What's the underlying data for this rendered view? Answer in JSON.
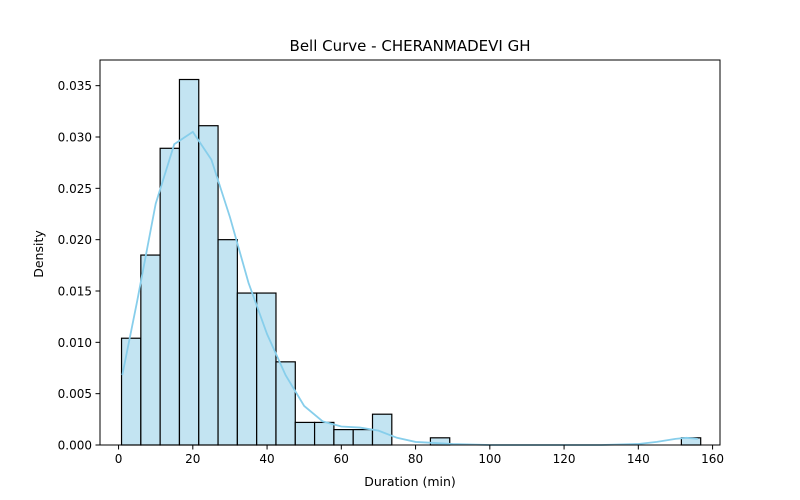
{
  "chart_data": {
    "type": "bar",
    "title": "Bell Curve - CHERANMADEVI GH",
    "xlabel": "Duration (min)",
    "ylabel": "Density",
    "xlim": [
      -5,
      162
    ],
    "ylim": [
      0,
      0.0375
    ],
    "xticks": [
      0,
      20,
      40,
      60,
      80,
      100,
      120,
      140,
      160
    ],
    "yticks": [
      0.0,
      0.005,
      0.01,
      0.015,
      0.02,
      0.025,
      0.03,
      0.035
    ],
    "xtick_labels": [
      "0",
      "20",
      "40",
      "60",
      "80",
      "100",
      "120",
      "140",
      "160"
    ],
    "ytick_labels": [
      "0.000",
      "0.005",
      "0.010",
      "0.015",
      "0.020",
      "0.025",
      "0.030",
      "0.035"
    ],
    "grid": false,
    "bar_fill": "#c3e4f2",
    "bar_edge": "#000000",
    "kde_color": "#87ceeb",
    "bins": [
      {
        "start": 0.8,
        "end": 6.0,
        "density": 0.0104
      },
      {
        "start": 6.0,
        "end": 11.2,
        "density": 0.0185
      },
      {
        "start": 11.2,
        "end": 16.4,
        "density": 0.0289
      },
      {
        "start": 16.4,
        "end": 21.6,
        "density": 0.0356
      },
      {
        "start": 21.6,
        "end": 26.8,
        "density": 0.0311
      },
      {
        "start": 26.8,
        "end": 32.0,
        "density": 0.02
      },
      {
        "start": 32.0,
        "end": 37.2,
        "density": 0.0148
      },
      {
        "start": 37.2,
        "end": 42.4,
        "density": 0.0148
      },
      {
        "start": 42.4,
        "end": 47.6,
        "density": 0.0081
      },
      {
        "start": 47.6,
        "end": 52.8,
        "density": 0.0022
      },
      {
        "start": 52.8,
        "end": 58.0,
        "density": 0.0022
      },
      {
        "start": 58.0,
        "end": 63.2,
        "density": 0.0015
      },
      {
        "start": 63.2,
        "end": 68.4,
        "density": 0.0015
      },
      {
        "start": 68.4,
        "end": 73.6,
        "density": 0.003
      },
      {
        "start": 84.0,
        "end": 89.2,
        "density": 0.0007
      },
      {
        "start": 151.6,
        "end": 156.8,
        "density": 0.0007
      }
    ],
    "kde": {
      "x": [
        1,
        5,
        10,
        15,
        20,
        25,
        30,
        35,
        40,
        45,
        50,
        55,
        60,
        65,
        70,
        75,
        80,
        85,
        90,
        100,
        110,
        120,
        130,
        140,
        145,
        150,
        153,
        156
      ],
      "y": [
        0.0068,
        0.014,
        0.0235,
        0.0293,
        0.0305,
        0.0278,
        0.0222,
        0.0158,
        0.0108,
        0.0068,
        0.0038,
        0.0023,
        0.0018,
        0.0017,
        0.0014,
        0.0007,
        0.0003,
        0.0002,
        0.0001,
        0.0,
        0.0,
        0.0,
        0.0,
        0.0001,
        0.0003,
        0.0006,
        0.0007,
        0.0006
      ]
    }
  }
}
